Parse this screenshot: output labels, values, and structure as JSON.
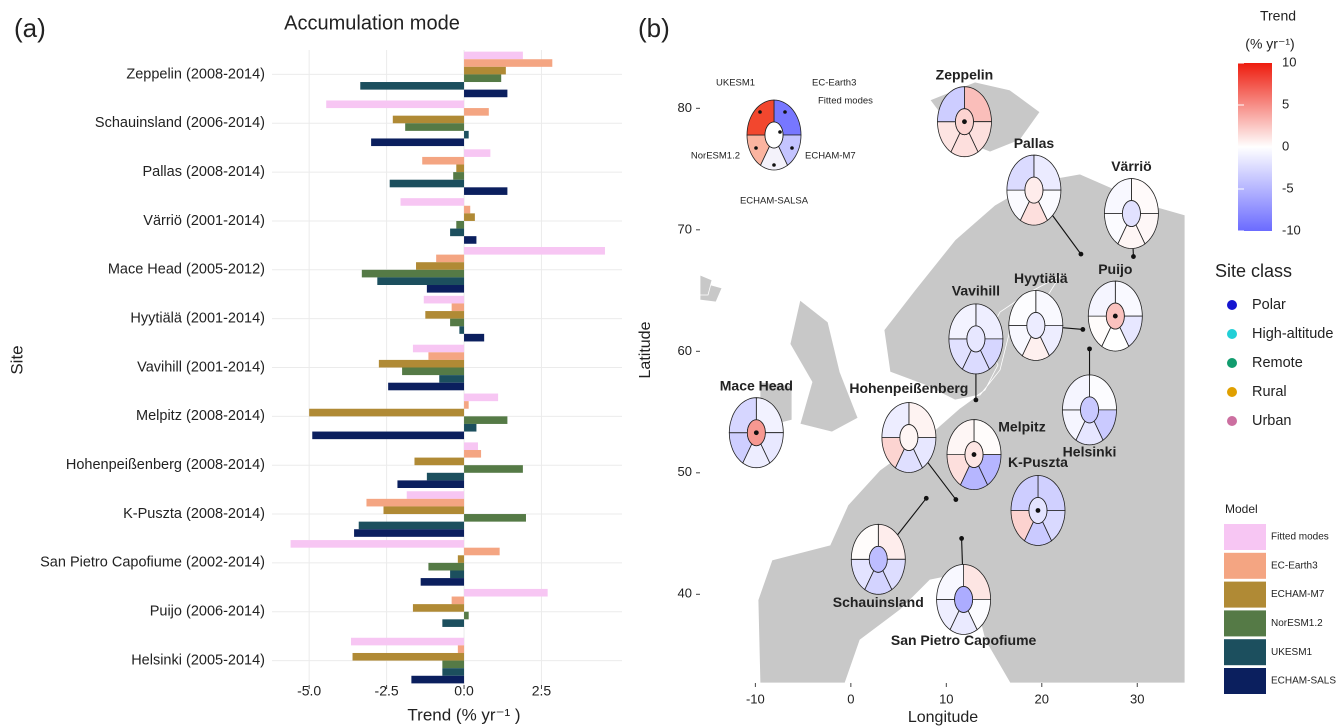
{
  "chart_data": [
    {
      "type": "bar",
      "orientation": "horizontal",
      "panel_label": "(a)",
      "title": "Accumulation mode",
      "x_label": "Trend (% yr⁻¹ )",
      "y_label": "Site",
      "categories": [
        "Zeppelin (2008-2014)",
        "Schauinsland (2006-2014)",
        "Pallas (2008-2014)",
        "Värriö (2001-2014)",
        "Mace Head (2005-2012)",
        "Hyytiälä (2001-2014)",
        "Vavihill (2001-2014)",
        "Melpitz (2008-2014)",
        "Hohenpeißenberg (2008-2014)",
        "K-Puszta (2008-2014)",
        "San Pietro Capofiume (2002-2014)",
        "Puijo (2006-2014)",
        "Helsinki (2005-2014)"
      ],
      "category_colors": [
        "#1515d0",
        "#22cfd6",
        "#119c6e",
        "#119c6e",
        "#119c6e",
        "#e0a000",
        "#e0a000",
        "#e0a000",
        "#e0a000",
        "#e0a000",
        "#e0a000",
        "#cc6fa0",
        "#cc6fa0"
      ],
      "series": [
        {
          "name": "Fitted modes",
          "color": "#f7c6f3",
          "values": [
            1.9,
            -4.45,
            0.85,
            -2.05,
            4.55,
            -1.3,
            -1.65,
            1.1,
            0.45,
            -1.85,
            -5.6,
            2.7,
            -3.65
          ]
        },
        {
          "name": "EC-Earth3",
          "color": "#f4a582",
          "values": [
            2.85,
            0.8,
            -1.35,
            0.2,
            -0.9,
            -0.4,
            -1.15,
            0.15,
            0.55,
            -3.15,
            1.15,
            -0.4,
            -0.2
          ]
        },
        {
          "name": "ECHAM-M7",
          "color": "#b08a35",
          "values": [
            1.35,
            -2.3,
            -0.25,
            0.35,
            -1.55,
            -1.25,
            -2.75,
            -5.0,
            -1.6,
            -2.6,
            -0.2,
            -1.65,
            -3.6
          ]
        },
        {
          "name": "NorESM1.2",
          "color": "#557a46",
          "values": [
            1.2,
            -1.9,
            -0.35,
            -0.25,
            -3.3,
            -0.45,
            -2.0,
            1.4,
            1.9,
            2.0,
            -1.15,
            0.15,
            -0.7
          ]
        },
        {
          "name": "UKESM1",
          "color": "#1c4f5e",
          "values": [
            -3.35,
            0.15,
            -2.4,
            -0.45,
            -2.8,
            -0.15,
            -0.8,
            0.4,
            -1.2,
            -3.4,
            -0.45,
            -0.7,
            -0.7
          ]
        },
        {
          "name": "ECHAM-SALSA",
          "color": "#0b1f5e",
          "values": [
            1.4,
            -3.0,
            1.4,
            0.4,
            -1.2,
            0.65,
            -2.45,
            -4.9,
            -2.15,
            -3.55,
            -1.4,
            0.0,
            -1.7
          ]
        }
      ],
      "xlim": [
        -6.2,
        5.1
      ],
      "xticks": [
        {
          "value": -5,
          "label": "-5.0"
        },
        {
          "value": -2.5,
          "label": "-2.5"
        },
        {
          "value": 0,
          "label": "0.0"
        },
        {
          "value": 2.5,
          "label": "2.5"
        }
      ],
      "grid": true
    },
    {
      "type": "map_glyph",
      "panel_label": "(b)",
      "x_label": "Longitude",
      "y_label": "Latitude",
      "xlim": [
        -15.8,
        35
      ],
      "ylim": [
        32.7,
        84.8
      ],
      "xticks": [
        -10,
        0,
        10,
        20,
        30
      ],
      "yticks": [
        40,
        50,
        60,
        70,
        80
      ],
      "sites": [
        "Zeppelin",
        "Schauinsland",
        "Pallas",
        "Värriö",
        "Mace Head",
        "Hyytiälä",
        "Vavihill",
        "Melpitz",
        "Hohenpeißenberg",
        "K-Puszta",
        "San Pietro Capofiume",
        "Puijo",
        "Helsinki"
      ],
      "site_colors": [
        "#1515d0",
        "#22cfd6",
        "#119c6e",
        "#119c6e",
        "#119c6e",
        "#e0a000",
        "#e0a000",
        "#e0a000",
        "#e0a000",
        "#e0a000",
        "#e0a000",
        "#cc6fa0",
        "#cc6fa0"
      ],
      "lon": [
        11.9,
        7.9,
        24.1,
        29.6,
        -9.9,
        24.3,
        13.1,
        12.9,
        11.0,
        19.6,
        11.6,
        27.7,
        25.0
      ],
      "lat": [
        78.9,
        47.9,
        68.0,
        67.8,
        53.3,
        61.8,
        56.0,
        51.5,
        47.8,
        46.9,
        44.6,
        62.9,
        60.2
      ],
      "colorbar": {
        "title": "Trend",
        "unit": "(% yr⁻¹)",
        "lim": [
          -10,
          10
        ],
        "ticks": [
          10,
          5,
          0,
          -5,
          -10
        ],
        "colors": [
          "#6b6bff",
          "#ffffff",
          "#ee1c0e"
        ]
      },
      "site_class": {
        "title": "Site class",
        "names": [
          "Polar",
          "High-altitude",
          "Remote",
          "Rural",
          "Urban"
        ],
        "colors": [
          "#1515d0",
          "#22cfd6",
          "#119c6e",
          "#e0a000",
          "#cc6fa0"
        ]
      },
      "model_legend_title": "Model"
    }
  ]
}
